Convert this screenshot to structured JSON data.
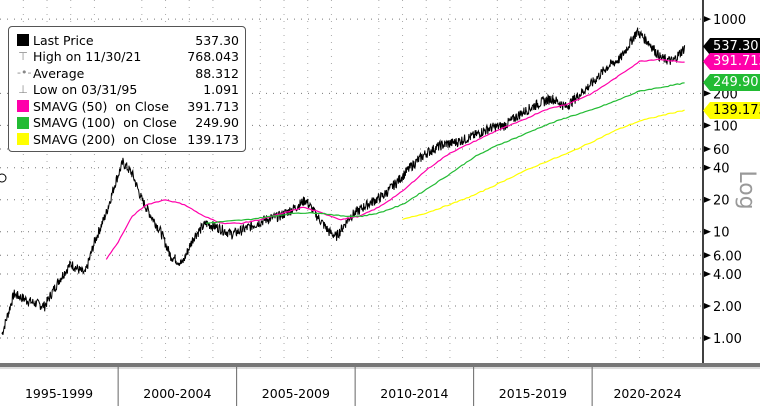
{
  "legend": {
    "items": [
      {
        "label": "Last Price",
        "value": "537.30",
        "marker": "square",
        "color": "#000000"
      },
      {
        "label": "High on 11/30/21",
        "value": "768.043",
        "marker": "high-icon"
      },
      {
        "label": "Average",
        "value": "88.312",
        "marker": "average-icon"
      },
      {
        "label": "Low on 03/31/95",
        "value": "1.091",
        "marker": "low-icon"
      },
      {
        "label": "SMAVG (50)  on Close",
        "value": "391.713",
        "marker": "square",
        "color": "#ff00aa"
      },
      {
        "label": "SMAVG (100)  on Close",
        "value": "249.90",
        "marker": "square",
        "color": "#22bb33"
      },
      {
        "label": "SMAVG (200)  on Close",
        "value": "139.173",
        "marker": "square",
        "color": "#ffff00"
      }
    ]
  },
  "tags": [
    {
      "value": "537.30",
      "bg": "#000000",
      "fg": "#ffffff",
      "y": 537.3
    },
    {
      "value": "391.713",
      "bg": "#ff00aa",
      "fg": "#ffffff",
      "y": 391.713
    },
    {
      "value": "249.90",
      "bg": "#22bb33",
      "fg": "#ffffff",
      "y": 249.9
    },
    {
      "value": "139.173",
      "bg": "#ffff00",
      "fg": "#000000",
      "y": 139.173
    }
  ],
  "axis_title": "Log",
  "chart_data": {
    "type": "line",
    "yscale": "log",
    "ylim": [
      0.8,
      1100
    ],
    "y_ticks": [
      "1000",
      "200",
      "100",
      "60",
      "40",
      "20",
      "10",
      "6.00",
      "4.00",
      "2.00",
      "1.00"
    ],
    "y_tick_values": [
      1000,
      200,
      100,
      60,
      40,
      20,
      10,
      6,
      4,
      2,
      1
    ],
    "x_tick_labels": [
      "1995-1999",
      "2000-2004",
      "2005-2009",
      "2010-2014",
      "2015-2019",
      "2020-2024"
    ],
    "grid": true,
    "legend_position": "top-left",
    "series": [
      {
        "name": "Last Price",
        "color": "#000000",
        "points": [
          [
            1995.1,
            1.09
          ],
          [
            1995.6,
            2.6
          ],
          [
            1996.3,
            2.2
          ],
          [
            1996.9,
            2.0
          ],
          [
            1997.5,
            3.5
          ],
          [
            1998.0,
            5
          ],
          [
            1998.6,
            4
          ],
          [
            1999.0,
            8
          ],
          [
            1999.5,
            15
          ],
          [
            1999.9,
            30
          ],
          [
            2000.2,
            45
          ],
          [
            2000.6,
            35
          ],
          [
            2001.0,
            20
          ],
          [
            2001.4,
            14
          ],
          [
            2001.8,
            10
          ],
          [
            2002.2,
            6
          ],
          [
            2002.7,
            5
          ],
          [
            2003.2,
            9
          ],
          [
            2003.7,
            12
          ],
          [
            2004.2,
            11
          ],
          [
            2004.8,
            9.5
          ],
          [
            2005.5,
            11
          ],
          [
            2006.2,
            13
          ],
          [
            2006.8,
            14
          ],
          [
            2007.5,
            17
          ],
          [
            2007.9,
            20
          ],
          [
            2008.4,
            14
          ],
          [
            2008.9,
            10
          ],
          [
            2009.2,
            9
          ],
          [
            2009.8,
            14
          ],
          [
            2010.5,
            18
          ],
          [
            2011.2,
            22
          ],
          [
            2011.8,
            30
          ],
          [
            2012.4,
            42
          ],
          [
            2013.0,
            55
          ],
          [
            2013.6,
            65
          ],
          [
            2014.3,
            70
          ],
          [
            2015.0,
            80
          ],
          [
            2015.7,
            95
          ],
          [
            2016.3,
            100
          ],
          [
            2017.0,
            130
          ],
          [
            2017.7,
            160
          ],
          [
            2018.3,
            180
          ],
          [
            2018.9,
            150
          ],
          [
            2019.4,
            190
          ],
          [
            2020.0,
            250
          ],
          [
            2020.6,
            350
          ],
          [
            2021.2,
            430
          ],
          [
            2021.9,
            768
          ],
          [
            2022.4,
            600
          ],
          [
            2022.9,
            430
          ],
          [
            2023.4,
            400
          ],
          [
            2023.9,
            537.3
          ]
        ]
      },
      {
        "name": "SMAVG (50)",
        "color": "#ff00aa",
        "points": [
          [
            1999.5,
            5.5
          ],
          [
            2000.0,
            8
          ],
          [
            2000.6,
            14
          ],
          [
            2001.2,
            18
          ],
          [
            2002.0,
            20
          ],
          [
            2002.8,
            18
          ],
          [
            2003.6,
            14
          ],
          [
            2004.4,
            12
          ],
          [
            2005.2,
            12
          ],
          [
            2006.0,
            13
          ],
          [
            2007.0,
            15
          ],
          [
            2007.8,
            17
          ],
          [
            2008.6,
            15
          ],
          [
            2009.4,
            13
          ],
          [
            2010.2,
            14
          ],
          [
            2011.0,
            17
          ],
          [
            2012.0,
            24
          ],
          [
            2013.0,
            38
          ],
          [
            2014.0,
            55
          ],
          [
            2015.0,
            70
          ],
          [
            2016.0,
            90
          ],
          [
            2017.0,
            110
          ],
          [
            2018.0,
            140
          ],
          [
            2019.0,
            160
          ],
          [
            2020.0,
            200
          ],
          [
            2021.0,
            280
          ],
          [
            2022.0,
            400
          ],
          [
            2022.8,
            420
          ],
          [
            2023.9,
            391.713
          ]
        ]
      },
      {
        "name": "SMAVG (100)",
        "color": "#22bb33",
        "points": [
          [
            2003.7,
            12
          ],
          [
            2004.5,
            12.5
          ],
          [
            2005.5,
            13
          ],
          [
            2006.5,
            14
          ],
          [
            2007.5,
            15
          ],
          [
            2008.5,
            15
          ],
          [
            2009.5,
            14
          ],
          [
            2010.3,
            14
          ],
          [
            2011.0,
            15
          ],
          [
            2012.0,
            18
          ],
          [
            2013.0,
            25
          ],
          [
            2014.0,
            35
          ],
          [
            2015.0,
            50
          ],
          [
            2016.0,
            65
          ],
          [
            2017.0,
            80
          ],
          [
            2018.0,
            100
          ],
          [
            2019.0,
            120
          ],
          [
            2020.0,
            140
          ],
          [
            2021.0,
            170
          ],
          [
            2022.0,
            210
          ],
          [
            2023.0,
            230
          ],
          [
            2023.9,
            249.9
          ]
        ]
      },
      {
        "name": "SMAVG (200)",
        "color": "#ffff00",
        "points": [
          [
            2012.0,
            13
          ],
          [
            2013.0,
            15
          ],
          [
            2014.0,
            18
          ],
          [
            2015.0,
            22
          ],
          [
            2016.0,
            28
          ],
          [
            2017.0,
            36
          ],
          [
            2018.0,
            45
          ],
          [
            2019.0,
            55
          ],
          [
            2020.0,
            70
          ],
          [
            2021.0,
            90
          ],
          [
            2022.0,
            110
          ],
          [
            2023.0,
            125
          ],
          [
            2023.9,
            139.173
          ]
        ]
      }
    ]
  }
}
